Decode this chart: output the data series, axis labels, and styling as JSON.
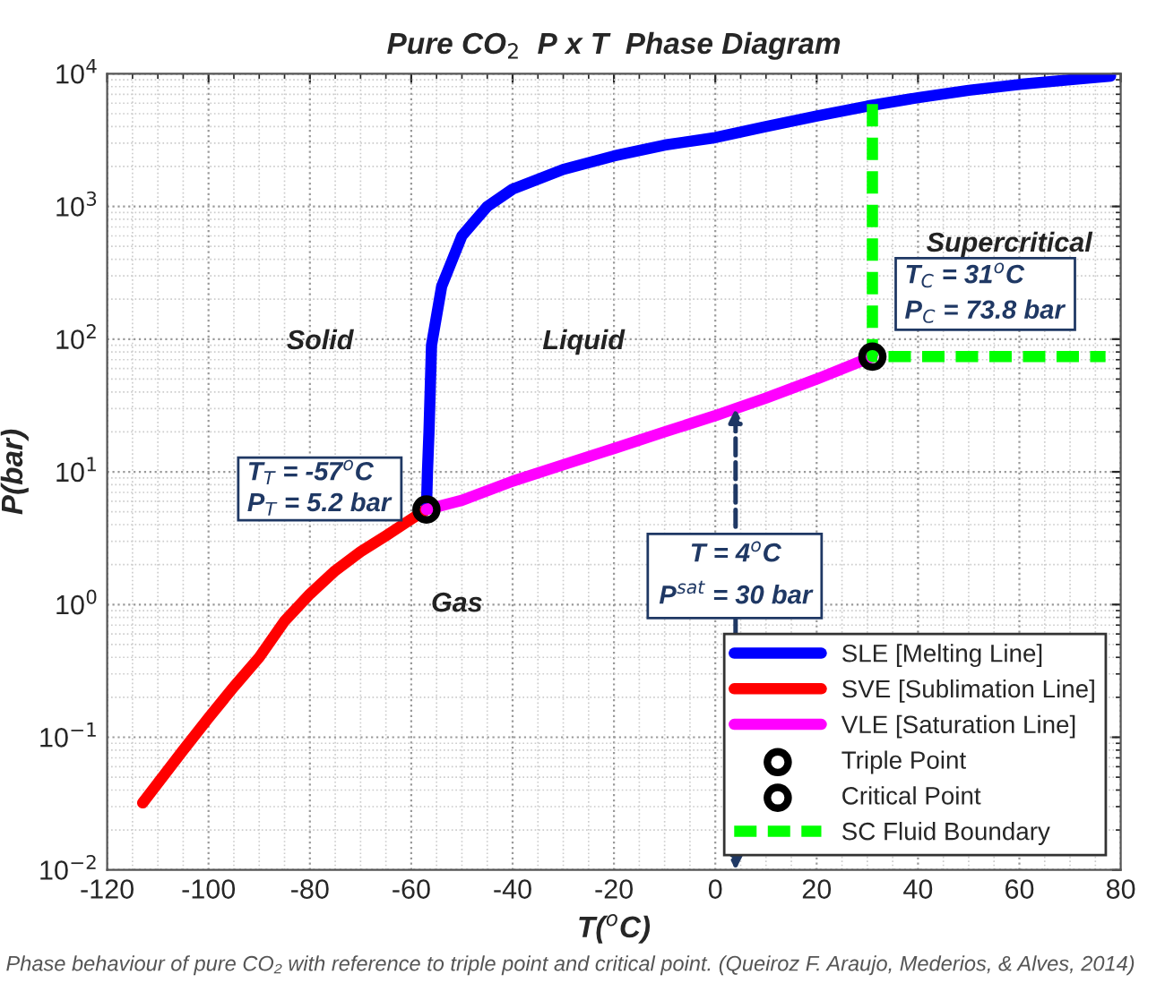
{
  "chart_data": {
    "type": "line",
    "title": "Pure CO$_{2}$  P x T  Phase Diagram",
    "xlabel": "T($^{o}$C)",
    "ylabel": "P(bar)",
    "log": "y",
    "grid": true,
    "legend": "bottom right",
    "xlim": [
      -120,
      80
    ],
    "xticks": [
      -120,
      -100,
      -80,
      -60,
      -40,
      -20,
      0,
      20,
      40,
      60,
      80
    ],
    "ylim": [
      0.01,
      10000
    ],
    "yticks": [
      {
        "value": 0.01,
        "label": "10$^{−2}$"
      },
      {
        "value": 0.1,
        "label": "10$^{−1}$"
      },
      {
        "value": 1,
        "label": "10$^{0}$"
      },
      {
        "value": 10,
        "label": "10$^{1}$"
      },
      {
        "value": 100,
        "label": "10$^{2}$"
      },
      {
        "value": 1000,
        "label": "10$^{3}$"
      },
      {
        "value": 10000,
        "label": "10$^{4}$"
      }
    ],
    "series": [
      {
        "name": "SLE [Melting Line]",
        "color": "#0000ff",
        "x": [
          -57,
          -56.8,
          -56.5,
          -56,
          -54,
          -50,
          -45,
          -40,
          -30,
          -20,
          -10,
          0,
          10,
          20,
          30,
          40,
          50,
          60,
          70,
          78
        ],
        "values": [
          5.2,
          10,
          20,
          90,
          250,
          600,
          1000,
          1350,
          1900,
          2400,
          2900,
          3300,
          4000,
          4800,
          5700,
          6600,
          7500,
          8300,
          9000,
          9600
        ]
      },
      {
        "name": "SVE [Sublimation Line]",
        "color": "#ff0000",
        "x": [
          -113,
          -105,
          -100,
          -95,
          -90,
          -85,
          -80,
          -75,
          -70,
          -65,
          -60,
          -57
        ],
        "values": [
          0.032,
          0.08,
          0.14,
          0.24,
          0.4,
          0.75,
          1.2,
          1.8,
          2.5,
          3.3,
          4.4,
          5.2
        ]
      },
      {
        "name": "VLE [Saturation Line]",
        "color": "#ff00ff",
        "x": [
          -57,
          -50,
          -40,
          -30,
          -20,
          -10,
          0,
          4,
          10,
          20,
          31
        ],
        "values": [
          5.2,
          6.1,
          8.5,
          11.3,
          15,
          20,
          26.5,
          30,
          36,
          50,
          73.8
        ]
      },
      {
        "name": "Triple Point",
        "type": "scatter",
        "marker": "circle",
        "color": "#000000",
        "x": [
          -57
        ],
        "values": [
          5.2
        ]
      },
      {
        "name": "Critical Point",
        "type": "scatter",
        "marker": "circle",
        "color": "#000000",
        "x": [
          31
        ],
        "values": [
          73.8
        ]
      },
      {
        "name": "SC Fluid Boundary",
        "line_style": "dashed",
        "color": "#00ff00",
        "x": [
          31,
          31,
          77
        ],
        "values": [
          5900,
          73.8,
          73.8
        ]
      }
    ],
    "annotations": [
      {
        "text": "T$_{T}$ = -57$^{o}$C",
        "x": -57,
        "y": 5.2
      },
      {
        "text": "P$_{T}$ = 5.2 bar",
        "x": -57,
        "y": 5.2
      },
      {
        "text": "T$_{C}$ = 31$^{o}$C",
        "x": 31,
        "y": 73.8
      },
      {
        "text": "P$_{C}$ = 73.8 bar",
        "x": 31,
        "y": 73.8
      },
      {
        "text": "T = 4$^{o}$C",
        "x": 4,
        "y": 30
      },
      "P$^{sat}$ = 30 bar",
      "Solid",
      "Liquid",
      "Gas",
      "Supercritical\nFluid",
      "Phase behaviour of pure CO₂ with reference to triple point and critical point. (Queiroz F. Araujo, Mederios, & Alves, 2014)"
    ]
  }
}
